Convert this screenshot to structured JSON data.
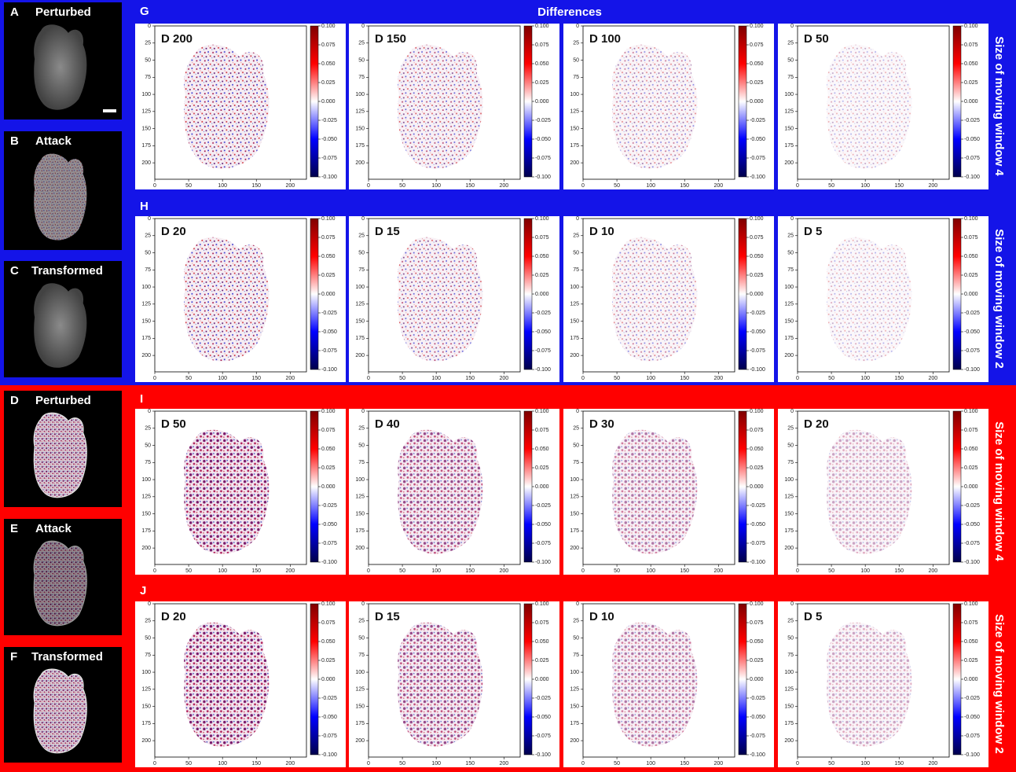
{
  "header": "Differences",
  "left_panels": [
    {
      "letter": "A",
      "label": "Perturbed"
    },
    {
      "letter": "B",
      "label": "Attack"
    },
    {
      "letter": "C",
      "label": "Transformed"
    },
    {
      "letter": "D",
      "label": "Perturbed"
    },
    {
      "letter": "E",
      "label": "Attack"
    },
    {
      "letter": "F",
      "label": "Transformed"
    }
  ],
  "groups": [
    {
      "letter": "G",
      "side_label": "Size of moving window  4",
      "panels": [
        {
          "title": "D 200"
        },
        {
          "title": "D 150"
        },
        {
          "title": "D 100"
        },
        {
          "title": "D 50"
        }
      ]
    },
    {
      "letter": "H",
      "side_label": "Size of moving window  2",
      "panels": [
        {
          "title": "D 20"
        },
        {
          "title": "D 15"
        },
        {
          "title": "D 10"
        },
        {
          "title": "D 5"
        }
      ]
    },
    {
      "letter": "I",
      "side_label": "Size of moving window  4",
      "panels": [
        {
          "title": "D 50"
        },
        {
          "title": "D 40"
        },
        {
          "title": "D 30"
        },
        {
          "title": "D 20"
        }
      ]
    },
    {
      "letter": "J",
      "side_label": "Size of moving window  2",
      "panels": [
        {
          "title": "D 20"
        },
        {
          "title": "D 15"
        },
        {
          "title": "D 10"
        },
        {
          "title": "D 5"
        }
      ]
    }
  ],
  "axes": {
    "xlim": [
      0,
      224
    ],
    "ylim": [
      224,
      0
    ],
    "xticks": [
      0,
      50,
      100,
      150,
      200
    ],
    "yticks": [
      0,
      25,
      50,
      75,
      100,
      125,
      150,
      175,
      200
    ],
    "clim": [
      -0.1,
      0.1
    ],
    "colorbar_ticks": [
      {
        "value": 0.1,
        "label": "0.100"
      },
      {
        "value": 0.075,
        "label": "0.075"
      },
      {
        "value": 0.05,
        "label": "0.050"
      },
      {
        "value": 0.025,
        "label": "0.025"
      },
      {
        "value": 0,
        "label": "0.000"
      },
      {
        "value": -0.025,
        "label": "-0.025"
      },
      {
        "value": -0.05,
        "label": "-0.050"
      },
      {
        "value": -0.075,
        "label": "-0.075"
      },
      {
        "value": -0.1,
        "label": "-0.100"
      }
    ]
  }
}
